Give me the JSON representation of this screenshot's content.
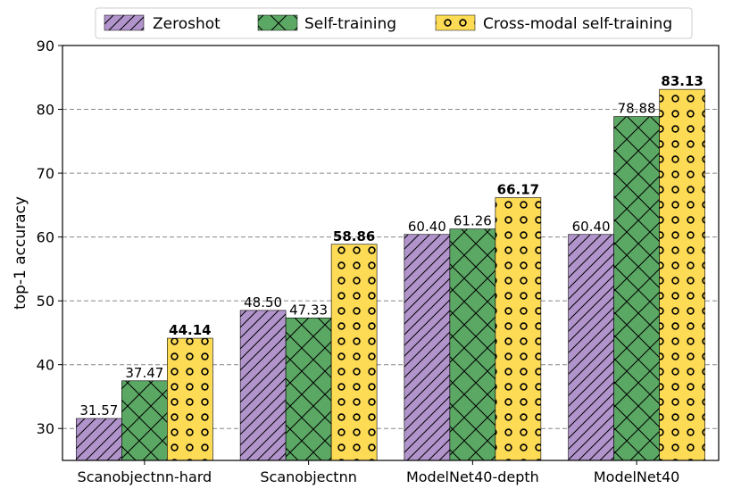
{
  "chart_data": {
    "type": "bar",
    "title": "",
    "xlabel": "",
    "ylabel": "top-1 accuracy",
    "ylim": [
      25,
      90
    ],
    "yticks": [
      30,
      40,
      50,
      60,
      70,
      80,
      90
    ],
    "grid": true,
    "legend_position": "top",
    "categories": [
      "Scanobjectnn-hard",
      "Scanobjectnn",
      "ModelNet40-depth",
      "ModelNet40"
    ],
    "series": [
      {
        "name": "Zeroshot",
        "values": [
          31.57,
          48.5,
          60.4,
          60.4
        ],
        "labels": [
          "31.57",
          "48.50",
          "60.40",
          "60.40"
        ],
        "color": "#b294cc",
        "hatch": "diagonal",
        "bold": false
      },
      {
        "name": "Self-training",
        "values": [
          37.47,
          47.33,
          61.26,
          78.88
        ],
        "labels": [
          "37.47",
          "47.33",
          "61.26",
          "78.88"
        ],
        "color": "#5ba764",
        "hatch": "cross",
        "bold": false
      },
      {
        "name": "Cross-modal self-training",
        "values": [
          44.14,
          58.86,
          66.17,
          83.13
        ],
        "labels": [
          "44.14",
          "58.86",
          "66.17",
          "83.13"
        ],
        "color": "#fddb55",
        "hatch": "circles",
        "bold": true
      }
    ]
  }
}
